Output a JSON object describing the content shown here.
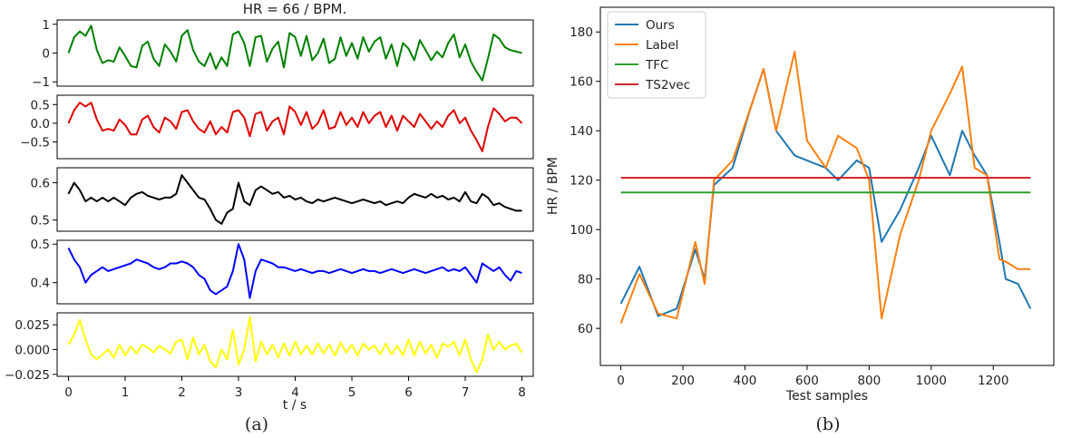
{
  "figure_left": {
    "title": "HR = 66 / BPM.",
    "xlabel": "t / s",
    "caption": "(a)",
    "x_ticks": [
      "0",
      "1",
      "2",
      "3",
      "4",
      "5",
      "6",
      "7",
      "8"
    ]
  },
  "figure_right": {
    "xlabel": "Test samples",
    "ylabel": "HR / BPM",
    "caption": "(b)",
    "legend": [
      "Ours",
      "Label",
      "TFC",
      "TS2vec"
    ]
  },
  "chart_data": [
    {
      "type": "line",
      "id": "a1",
      "title": "HR = 66 / BPM.",
      "color": "#008000",
      "xlim": [
        -0.2,
        8.2
      ],
      "ylim": [
        -1.15,
        1.15
      ],
      "yticks": [
        1,
        0,
        -1
      ],
      "ytick_labels": [
        "1",
        "0",
        "−1"
      ],
      "x": [
        0,
        0.1,
        0.2,
        0.3,
        0.4,
        0.5,
        0.6,
        0.7,
        0.8,
        0.9,
        1.0,
        1.1,
        1.2,
        1.3,
        1.4,
        1.5,
        1.6,
        1.7,
        1.8,
        1.9,
        2.0,
        2.1,
        2.2,
        2.3,
        2.4,
        2.5,
        2.6,
        2.7,
        2.8,
        2.9,
        3.0,
        3.1,
        3.2,
        3.3,
        3.4,
        3.5,
        3.6,
        3.7,
        3.8,
        3.9,
        4.0,
        4.1,
        4.2,
        4.3,
        4.4,
        4.5,
        4.6,
        4.7,
        4.8,
        4.9,
        5.0,
        5.1,
        5.2,
        5.3,
        5.4,
        5.5,
        5.6,
        5.7,
        5.8,
        5.9,
        6.0,
        6.1,
        6.2,
        6.3,
        6.4,
        6.5,
        6.6,
        6.7,
        6.8,
        6.9,
        7.0,
        7.1,
        7.2,
        7.3,
        7.4,
        7.5,
        7.6,
        7.7,
        7.8,
        7.9,
        8.0
      ],
      "y": [
        0.0,
        0.55,
        0.75,
        0.6,
        0.95,
        0.1,
        -0.35,
        -0.25,
        -0.3,
        0.2,
        -0.1,
        -0.45,
        -0.5,
        0.25,
        0.4,
        -0.2,
        -0.45,
        0.3,
        0.05,
        -0.3,
        0.6,
        0.8,
        0.1,
        -0.3,
        -0.45,
        0.0,
        -0.55,
        -0.15,
        -0.45,
        0.65,
        0.75,
        0.35,
        -0.45,
        0.55,
        0.6,
        -0.3,
        0.15,
        0.4,
        -0.5,
        0.7,
        0.55,
        -0.1,
        0.6,
        -0.25,
        0.0,
        0.5,
        -0.35,
        -0.2,
        0.55,
        -0.1,
        0.35,
        -0.2,
        0.55,
        0.05,
        0.4,
        0.55,
        -0.2,
        0.3,
        -0.45,
        0.35,
        0.15,
        -0.25,
        0.45,
        0.1,
        -0.25,
        0.05,
        -0.15,
        0.35,
        0.65,
        -0.15,
        0.3,
        -0.3,
        -0.65,
        -0.95,
        -0.2,
        0.65,
        0.5,
        0.2,
        0.1,
        0.05,
        0.0
      ]
    },
    {
      "type": "line",
      "id": "a2",
      "color": "#e00000",
      "xlim": [
        -0.2,
        8.2
      ],
      "ylim": [
        -0.95,
        0.75
      ],
      "yticks": [
        0.5,
        0.0,
        -0.5
      ],
      "ytick_labels": [
        "0.5",
        "0.0",
        "−0.5"
      ],
      "x": [
        0,
        0.1,
        0.2,
        0.3,
        0.4,
        0.5,
        0.6,
        0.7,
        0.8,
        0.9,
        1.0,
        1.1,
        1.2,
        1.3,
        1.4,
        1.5,
        1.6,
        1.7,
        1.8,
        1.9,
        2.0,
        2.1,
        2.2,
        2.3,
        2.4,
        2.5,
        2.6,
        2.7,
        2.8,
        2.9,
        3.0,
        3.1,
        3.2,
        3.3,
        3.4,
        3.5,
        3.6,
        3.7,
        3.8,
        3.9,
        4.0,
        4.1,
        4.2,
        4.3,
        4.4,
        4.5,
        4.6,
        4.7,
        4.8,
        4.9,
        5.0,
        5.1,
        5.2,
        5.3,
        5.4,
        5.5,
        5.6,
        5.7,
        5.8,
        5.9,
        6.0,
        6.1,
        6.2,
        6.3,
        6.4,
        6.5,
        6.6,
        6.7,
        6.8,
        6.9,
        7.0,
        7.1,
        7.2,
        7.3,
        7.4,
        7.5,
        7.6,
        7.7,
        7.8,
        7.9,
        8.0
      ],
      "y": [
        0.0,
        0.35,
        0.55,
        0.45,
        0.55,
        0.1,
        -0.2,
        -0.15,
        -0.2,
        0.1,
        -0.05,
        -0.3,
        -0.3,
        0.1,
        0.2,
        -0.1,
        -0.25,
        0.15,
        0.05,
        -0.15,
        0.3,
        0.35,
        0.05,
        -0.15,
        -0.25,
        0.05,
        -0.3,
        -0.1,
        -0.25,
        0.3,
        0.35,
        0.15,
        -0.35,
        0.25,
        0.3,
        -0.2,
        0.05,
        0.15,
        -0.3,
        0.45,
        0.3,
        -0.05,
        0.3,
        -0.15,
        0.0,
        0.35,
        -0.15,
        -0.1,
        0.3,
        -0.05,
        0.15,
        -0.1,
        0.3,
        0.0,
        0.2,
        0.3,
        -0.1,
        0.2,
        -0.2,
        0.2,
        0.05,
        -0.1,
        0.25,
        0.05,
        -0.15,
        0.05,
        -0.1,
        0.2,
        0.35,
        0.0,
        0.15,
        -0.2,
        -0.45,
        -0.75,
        -0.1,
        0.4,
        0.25,
        0.05,
        0.15,
        0.15,
        0.0
      ]
    },
    {
      "type": "line",
      "id": "a3",
      "color": "#000000",
      "xlim": [
        -0.2,
        8.2
      ],
      "ylim": [
        0.47,
        0.64
      ],
      "yticks": [
        0.6,
        0.5
      ],
      "ytick_labels": [
        "0.6",
        "0.5"
      ],
      "x": [
        0,
        0.1,
        0.2,
        0.3,
        0.4,
        0.5,
        0.6,
        0.7,
        0.8,
        0.9,
        1.0,
        1.1,
        1.2,
        1.3,
        1.4,
        1.5,
        1.6,
        1.7,
        1.8,
        1.9,
        2.0,
        2.1,
        2.2,
        2.3,
        2.4,
        2.5,
        2.6,
        2.7,
        2.8,
        2.9,
        3.0,
        3.1,
        3.2,
        3.3,
        3.4,
        3.5,
        3.6,
        3.7,
        3.8,
        3.9,
        4.0,
        4.1,
        4.2,
        4.3,
        4.4,
        4.5,
        4.6,
        4.7,
        4.8,
        4.9,
        5.0,
        5.1,
        5.2,
        5.3,
        5.4,
        5.5,
        5.6,
        5.7,
        5.8,
        5.9,
        6.0,
        6.1,
        6.2,
        6.3,
        6.4,
        6.5,
        6.6,
        6.7,
        6.8,
        6.9,
        7.0,
        7.1,
        7.2,
        7.3,
        7.4,
        7.5,
        7.6,
        7.7,
        7.8,
        7.9,
        8.0
      ],
      "y": [
        0.57,
        0.6,
        0.58,
        0.55,
        0.56,
        0.55,
        0.56,
        0.55,
        0.56,
        0.55,
        0.54,
        0.56,
        0.57,
        0.575,
        0.565,
        0.56,
        0.555,
        0.56,
        0.56,
        0.57,
        0.62,
        0.6,
        0.58,
        0.56,
        0.555,
        0.53,
        0.5,
        0.49,
        0.52,
        0.53,
        0.6,
        0.55,
        0.54,
        0.58,
        0.59,
        0.58,
        0.57,
        0.575,
        0.56,
        0.565,
        0.555,
        0.56,
        0.55,
        0.545,
        0.555,
        0.55,
        0.555,
        0.56,
        0.555,
        0.55,
        0.545,
        0.55,
        0.555,
        0.55,
        0.545,
        0.55,
        0.54,
        0.545,
        0.55,
        0.545,
        0.56,
        0.57,
        0.565,
        0.56,
        0.57,
        0.56,
        0.565,
        0.555,
        0.56,
        0.55,
        0.575,
        0.55,
        0.545,
        0.57,
        0.56,
        0.54,
        0.545,
        0.535,
        0.53,
        0.525,
        0.525
      ]
    },
    {
      "type": "line",
      "id": "a4",
      "color": "#0000ff",
      "xlim": [
        -0.2,
        8.2
      ],
      "ylim": [
        0.345,
        0.51
      ],
      "yticks": [
        0.5,
        0.4
      ],
      "ytick_labels": [
        "0.5",
        "0.4"
      ],
      "x": [
        0,
        0.1,
        0.2,
        0.3,
        0.4,
        0.5,
        0.6,
        0.7,
        0.8,
        0.9,
        1.0,
        1.1,
        1.2,
        1.3,
        1.4,
        1.5,
        1.6,
        1.7,
        1.8,
        1.9,
        2.0,
        2.1,
        2.2,
        2.3,
        2.4,
        2.5,
        2.6,
        2.7,
        2.8,
        2.9,
        3.0,
        3.1,
        3.2,
        3.3,
        3.4,
        3.5,
        3.6,
        3.7,
        3.8,
        3.9,
        4.0,
        4.1,
        4.2,
        4.3,
        4.4,
        4.5,
        4.6,
        4.7,
        4.8,
        4.9,
        5.0,
        5.1,
        5.2,
        5.3,
        5.4,
        5.5,
        5.6,
        5.7,
        5.8,
        5.9,
        6.0,
        6.1,
        6.2,
        6.3,
        6.4,
        6.5,
        6.6,
        6.7,
        6.8,
        6.9,
        7.0,
        7.1,
        7.2,
        7.3,
        7.4,
        7.5,
        7.6,
        7.7,
        7.8,
        7.9,
        8.0
      ],
      "y": [
        0.49,
        0.46,
        0.44,
        0.4,
        0.42,
        0.43,
        0.44,
        0.43,
        0.435,
        0.44,
        0.445,
        0.45,
        0.46,
        0.455,
        0.45,
        0.44,
        0.435,
        0.44,
        0.45,
        0.45,
        0.455,
        0.45,
        0.44,
        0.42,
        0.41,
        0.38,
        0.37,
        0.38,
        0.39,
        0.43,
        0.5,
        0.46,
        0.36,
        0.43,
        0.46,
        0.455,
        0.45,
        0.44,
        0.44,
        0.435,
        0.43,
        0.435,
        0.43,
        0.425,
        0.43,
        0.43,
        0.425,
        0.43,
        0.435,
        0.43,
        0.425,
        0.43,
        0.435,
        0.43,
        0.43,
        0.425,
        0.43,
        0.435,
        0.43,
        0.425,
        0.43,
        0.435,
        0.43,
        0.425,
        0.43,
        0.435,
        0.44,
        0.43,
        0.435,
        0.43,
        0.44,
        0.42,
        0.4,
        0.45,
        0.44,
        0.43,
        0.44,
        0.42,
        0.405,
        0.43,
        0.425
      ]
    },
    {
      "type": "line",
      "id": "a5",
      "color": "#ffff00",
      "xlim": [
        -0.2,
        8.2
      ],
      "ylim": [
        -0.027,
        0.037
      ],
      "yticks": [
        0.025,
        0.0,
        -0.025
      ],
      "ytick_labels": [
        "0.025",
        "0.000",
        "−0.025"
      ],
      "x": [
        0,
        0.1,
        0.2,
        0.3,
        0.4,
        0.5,
        0.6,
        0.7,
        0.8,
        0.9,
        1.0,
        1.1,
        1.2,
        1.3,
        1.4,
        1.5,
        1.6,
        1.7,
        1.8,
        1.9,
        2.0,
        2.1,
        2.2,
        2.3,
        2.4,
        2.5,
        2.6,
        2.7,
        2.8,
        2.9,
        3.0,
        3.1,
        3.2,
        3.3,
        3.4,
        3.5,
        3.6,
        3.7,
        3.8,
        3.9,
        4.0,
        4.1,
        4.2,
        4.3,
        4.4,
        4.5,
        4.6,
        4.7,
        4.8,
        4.9,
        5.0,
        5.1,
        5.2,
        5.3,
        5.4,
        5.5,
        5.6,
        5.7,
        5.8,
        5.9,
        6.0,
        6.1,
        6.2,
        6.3,
        6.4,
        6.5,
        6.6,
        6.7,
        6.8,
        6.9,
        7.0,
        7.1,
        7.2,
        7.3,
        7.4,
        7.5,
        7.6,
        7.7,
        7.8,
        7.9,
        8.0
      ],
      "y": [
        0.005,
        0.015,
        0.03,
        0.01,
        -0.005,
        -0.01,
        -0.005,
        0.0,
        -0.008,
        0.005,
        -0.006,
        0.003,
        -0.004,
        0.005,
        0.002,
        -0.003,
        0.004,
        0.0,
        -0.004,
        0.008,
        0.01,
        -0.01,
        0.012,
        -0.005,
        0.005,
        -0.012,
        -0.018,
        0.0,
        -0.01,
        0.02,
        -0.015,
        0.0,
        0.033,
        -0.012,
        0.008,
        -0.005,
        0.005,
        -0.008,
        0.006,
        -0.006,
        0.008,
        -0.005,
        0.004,
        -0.005,
        0.006,
        -0.004,
        0.005,
        -0.006,
        0.007,
        -0.003,
        0.005,
        -0.006,
        0.006,
        0.0,
        0.004,
        -0.005,
        0.006,
        -0.005,
        0.004,
        -0.006,
        0.01,
        -0.006,
        0.008,
        -0.004,
        0.005,
        -0.008,
        0.006,
        0.003,
        0.008,
        -0.006,
        0.01,
        -0.01,
        -0.023,
        -0.01,
        0.015,
        0.0,
        0.008,
        0.0,
        0.004,
        0.006,
        -0.003
      ]
    },
    {
      "type": "line",
      "id": "b",
      "xlabel": "Test samples",
      "ylabel": "HR / BPM",
      "xlim": [
        -66,
        1395
      ],
      "ylim": [
        45,
        190
      ],
      "xticks": [
        0,
        200,
        400,
        600,
        800,
        1000,
        1200
      ],
      "yticks": [
        60,
        80,
        100,
        120,
        140,
        160,
        180
      ],
      "legend_position": "top-left",
      "x": [
        0,
        60,
        120,
        180,
        240,
        270,
        300,
        360,
        420,
        460,
        500,
        560,
        600,
        660,
        700,
        760,
        800,
        840,
        900,
        960,
        1000,
        1060,
        1100,
        1140,
        1180,
        1220,
        1240,
        1280,
        1320
      ],
      "series": [
        {
          "name": "Ours",
          "color": "#1f77b4",
          "values": [
            70,
            85,
            65,
            68,
            92,
            80,
            118,
            125,
            150,
            165,
            140,
            130,
            128,
            125,
            120,
            128,
            125,
            95,
            108,
            125,
            138,
            122,
            140,
            130,
            122,
            95,
            80,
            78,
            68
          ]
        },
        {
          "name": "Label",
          "color": "#ff7f0e",
          "values": [
            62,
            82,
            66,
            64,
            95,
            78,
            120,
            128,
            150,
            165,
            140,
            172,
            136,
            125,
            138,
            133,
            120,
            64,
            98,
            120,
            140,
            155,
            166,
            125,
            122,
            88,
            87,
            84,
            84
          ]
        },
        {
          "name": "TFC",
          "color": "#2ca02c",
          "values": [
            115,
            115,
            115,
            115,
            115,
            115,
            115,
            115,
            115,
            115,
            115,
            115,
            115,
            115,
            115,
            115,
            115,
            115,
            115,
            115,
            115,
            115,
            115,
            115,
            115,
            115,
            115,
            115,
            115
          ]
        },
        {
          "name": "TS2vec",
          "color": "#d62728",
          "values": [
            121,
            121,
            121,
            121,
            121,
            121,
            121,
            121,
            121,
            121,
            121,
            121,
            121,
            121,
            121,
            121,
            121,
            121,
            121,
            121,
            121,
            121,
            121,
            121,
            121,
            121,
            121,
            121,
            121
          ]
        }
      ]
    }
  ]
}
